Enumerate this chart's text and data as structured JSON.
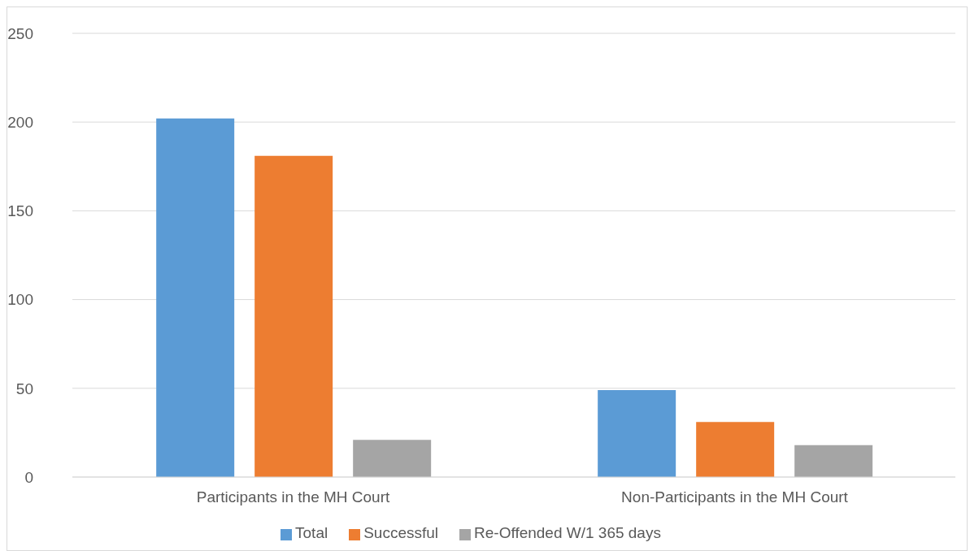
{
  "chart_data": {
    "type": "bar",
    "categories": [
      "Participants in the MH Court",
      "Non-Participants in the MH Court"
    ],
    "series": [
      {
        "name": "Total",
        "color": "#5b9bd5",
        "values": [
          202,
          49
        ]
      },
      {
        "name": "Successful",
        "color": "#ed7d31",
        "values": [
          181,
          31
        ]
      },
      {
        "name": "Re-Offended W/1 365 days",
        "color": "#a5a5a5",
        "values": [
          21,
          18
        ]
      }
    ],
    "ylim": [
      0,
      250
    ],
    "yticks": [
      0,
      50,
      100,
      150,
      200,
      250
    ],
    "grid": "y",
    "legend": "bottom"
  }
}
